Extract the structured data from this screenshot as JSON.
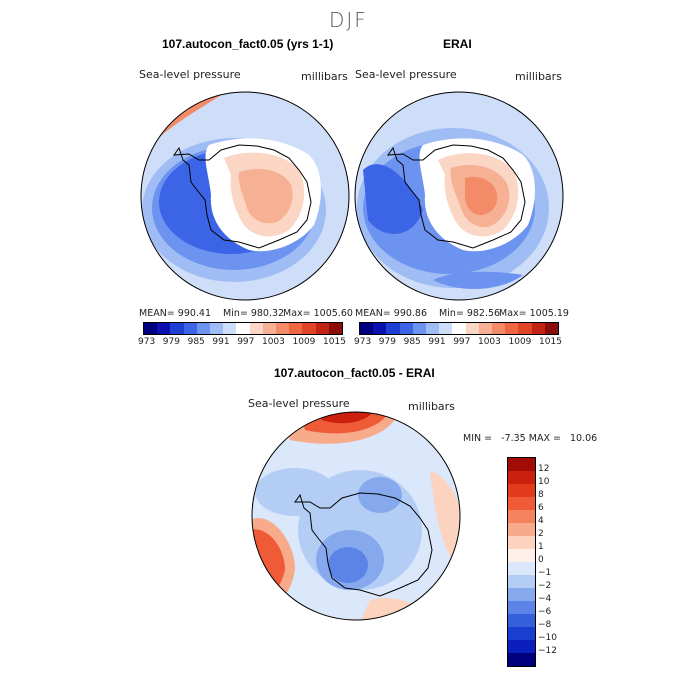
{
  "season": "DJF",
  "panel1": {
    "title": "107.autocon_fact0.05 (yrs 1-1)",
    "variable": "Sea-level pressure",
    "units": "millibars",
    "mean_label": "MEAN= 990.41",
    "min_label": "Min= 980.32",
    "max_label": "Max= 1005.60"
  },
  "panel2": {
    "title": "ERAI",
    "variable": "Sea-level pressure",
    "units": "millibars",
    "mean_label": "MEAN= 990.86",
    "min_label": "Min= 982.56",
    "max_label": "Max= 1005.19"
  },
  "panel3": {
    "title": "107.autocon_fact0.05 - ERAI",
    "variable": "Sea-level pressure",
    "units": "millibars",
    "minmax_label": "MIN =   -7.35 MAX =   10.06"
  },
  "colorbar_top": {
    "ticks": [
      "973",
      "979",
      "985",
      "991",
      "997",
      "1003",
      "1009",
      "1015"
    ],
    "colors": [
      "#00007f",
      "#0a0fb0",
      "#1f3fd2",
      "#3b64e6",
      "#6c93ef",
      "#9fbdf4",
      "#cfdef8",
      "#ffffff",
      "#fbd6c4",
      "#f6b194",
      "#f38b68",
      "#ef6843",
      "#e04526",
      "#bf2414",
      "#8a0d0a"
    ]
  },
  "colorbar_diff": {
    "ticks": [
      "12",
      "10",
      "8",
      "6",
      "4",
      "2",
      "1",
      "0",
      "−1",
      "−2",
      "−4",
      "−6",
      "−8",
      "−10",
      "−12"
    ],
    "colors": [
      "#a10d06",
      "#cc200e",
      "#e23b1c",
      "#ef5b36",
      "#f5835d",
      "#f8ab8a",
      "#fbd3bf",
      "#fdf0e8",
      "#dbe7fa",
      "#b4cdf5",
      "#86a9ee",
      "#5b84e6",
      "#3460db",
      "#1a3ed0",
      "#0b1fbf",
      "#00007f"
    ]
  },
  "colors": {
    "land_high": "#f6b194",
    "ocean_low": "#3b64e6",
    "ocean_mid": "#9fbdf4"
  }
}
